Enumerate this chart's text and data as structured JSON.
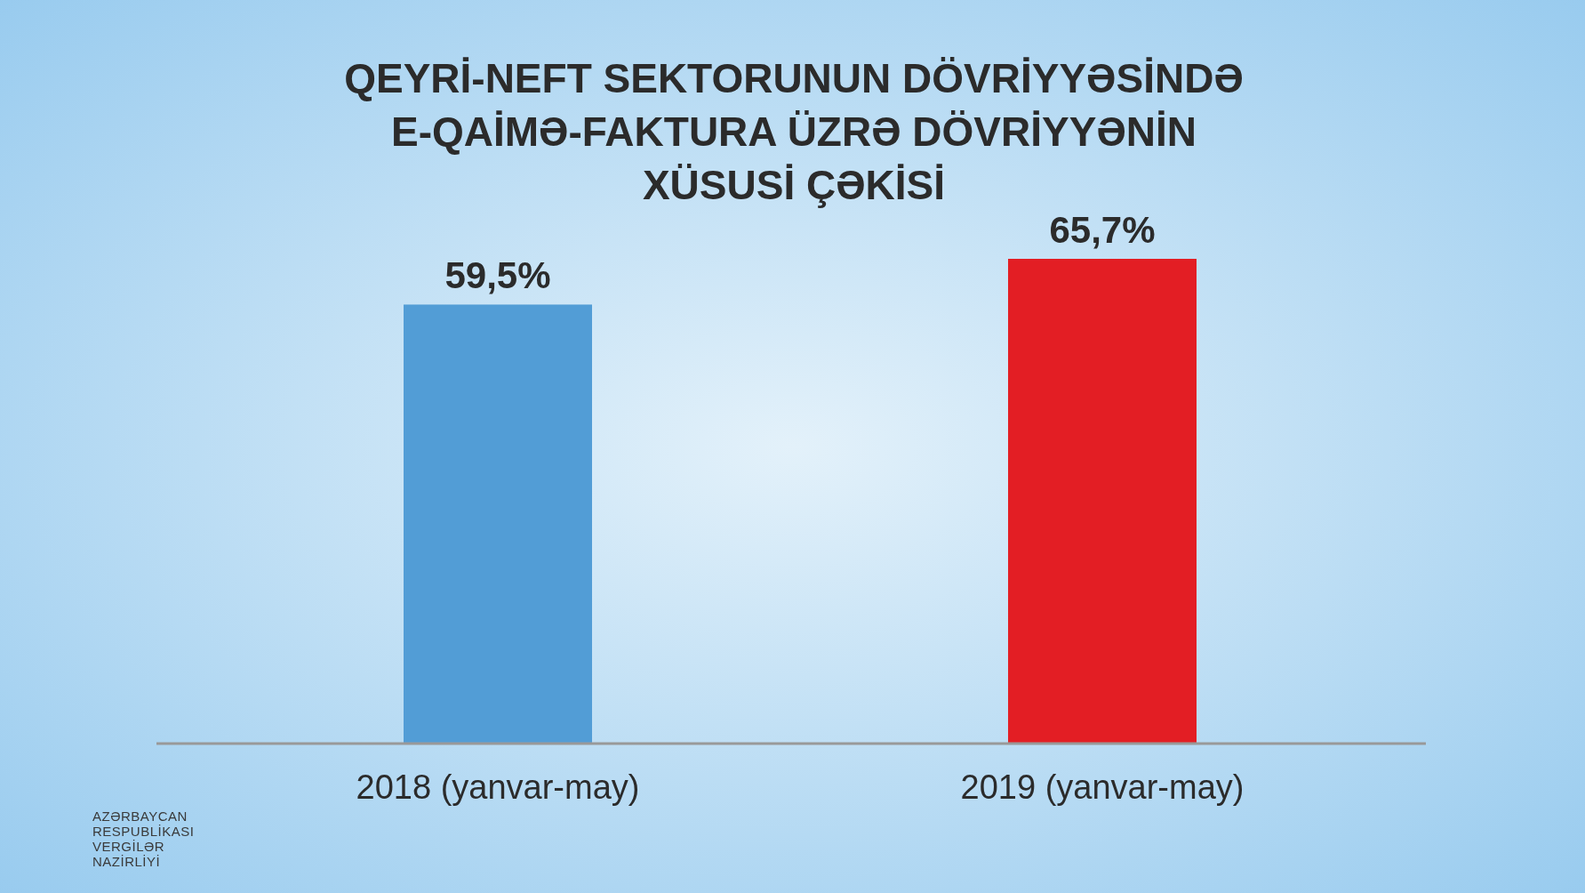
{
  "chart_data": {
    "type": "bar",
    "title": "QEYRİ-NEFT SEKTORUNUN DÖVRİYYƏSİNDƏ\nE-QAİMƏ-FAKTURA ÜZRƏ DÖVRİYYƏNİN\nXÜSUSİ ÇƏKİSİ",
    "categories": [
      "2018 (yanvar-may)",
      "2019 (yanvar-may)"
    ],
    "values": [
      59.5,
      65.7
    ],
    "colors": [
      "#529dd6",
      "#e31e24"
    ],
    "value_labels": [
      "59,5%",
      "65,7%"
    ],
    "tick_labels": "x",
    "annotations": [
      "AZƏRBAYCAN\nRESPUBLİKASI\nVERGİLƏR\nNAZİRLİYİ"
    ]
  }
}
